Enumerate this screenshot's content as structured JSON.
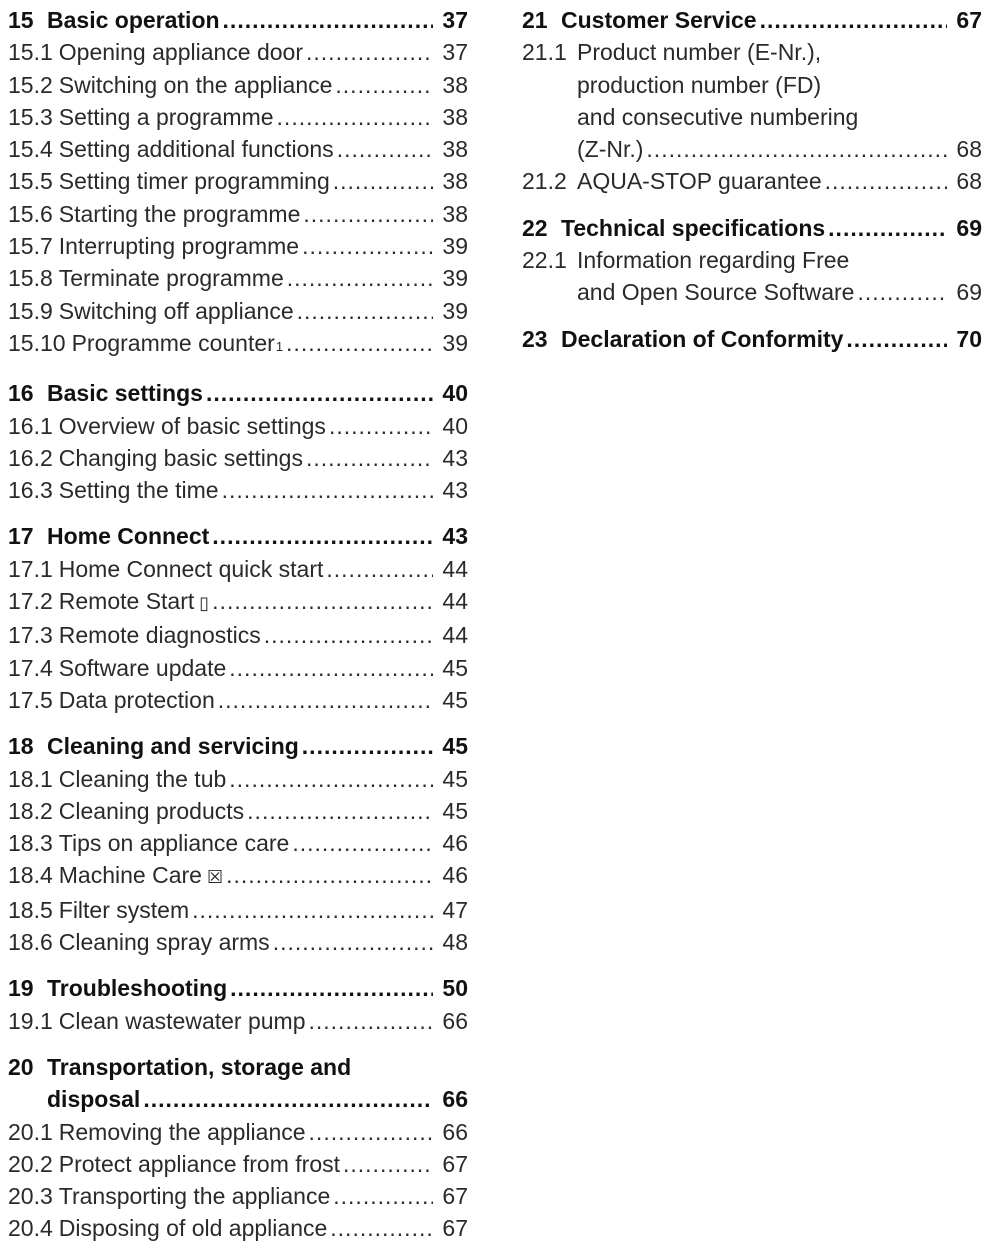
{
  "left": [
    {
      "num": "15",
      "title": "Basic operation",
      "page": "37",
      "items": [
        {
          "num": "15.1",
          "title": "Opening appliance door",
          "page": "37"
        },
        {
          "num": "15.2",
          "title": "Switching on the appliance",
          "page": "38"
        },
        {
          "num": "15.3",
          "title": "Setting a programme",
          "page": "38"
        },
        {
          "num": "15.4",
          "title": "Setting additional functions",
          "page": "38"
        },
        {
          "num": "15.5",
          "title": "Setting timer programming",
          "page": "38"
        },
        {
          "num": "15.6",
          "title": "Starting the programme",
          "page": "38"
        },
        {
          "num": "15.7",
          "title": "Interrupting programme",
          "page": "39"
        },
        {
          "num": "15.8",
          "title": "Terminate programme",
          "page": "39"
        },
        {
          "num": "15.9",
          "title": "Switching off appliance",
          "page": "39"
        },
        {
          "num": "15.10",
          "title": "Programme counter",
          "sup": "1",
          "page": "39"
        }
      ]
    },
    {
      "num": "16",
      "title": "Basic settings",
      "page": "40",
      "items": [
        {
          "num": "16.1",
          "title": "Overview of basic settings",
          "page": "40"
        },
        {
          "num": "16.2",
          "title": "Changing basic settings",
          "page": "43"
        },
        {
          "num": "16.3",
          "title": "Setting the time",
          "page": "43"
        }
      ]
    },
    {
      "num": "17",
      "title": "Home Connect",
      "page": "43",
      "items": [
        {
          "num": "17.1",
          "title": "Home Connect quick start",
          "page": "44"
        },
        {
          "num": "17.2",
          "title": "Remote Start",
          "icon": "remote-start-icon",
          "page": "44"
        },
        {
          "num": "17.3",
          "title": "Remote diagnostics",
          "page": "44"
        },
        {
          "num": "17.4",
          "title": "Software update",
          "page": "45"
        },
        {
          "num": "17.5",
          "title": "Data protection",
          "page": "45"
        }
      ]
    },
    {
      "num": "18",
      "title": "Cleaning and servicing",
      "page": "45",
      "items": [
        {
          "num": "18.1",
          "title": "Cleaning the tub",
          "page": "45"
        },
        {
          "num": "18.2",
          "title": "Cleaning products",
          "page": "45"
        },
        {
          "num": "18.3",
          "title": "Tips on appliance care",
          "page": "46"
        },
        {
          "num": "18.4",
          "title": "Machine Care",
          "icon": "machine-care-icon",
          "page": "46"
        },
        {
          "num": "18.5",
          "title": "Filter system",
          "page": "47"
        },
        {
          "num": "18.6",
          "title": "Cleaning spray arms",
          "page": "48"
        }
      ]
    },
    {
      "num": "19",
      "title": "Troubleshooting",
      "page": "50",
      "items": [
        {
          "num": "19.1",
          "title": "Clean wastewater pump",
          "page": "66"
        }
      ]
    },
    {
      "num": "20",
      "title_line1": "Transportation, storage and",
      "title_line2": "disposal",
      "page": "66",
      "items": [
        {
          "num": "20.1",
          "title": "Removing the appliance",
          "page": "66"
        },
        {
          "num": "20.2",
          "title": "Protect appliance from frost",
          "page": "67"
        },
        {
          "num": "20.3",
          "title": "Transporting the appliance",
          "page": "67"
        },
        {
          "num": "20.4",
          "title": "Disposing of old appliance",
          "page": "67"
        }
      ]
    }
  ],
  "right": {
    "s21": {
      "num": "21",
      "title": "Customer Service",
      "page": "67",
      "item1": {
        "num": "21.1",
        "line1": "Product number (E-Nr.),",
        "line2": "production number (FD)",
        "line3": "and consecutive numbering",
        "line4": "(Z-Nr.)",
        "page": "68"
      },
      "item2": {
        "num": "21.2",
        "title": "AQUA-STOP guarantee",
        "page": "68"
      }
    },
    "s22": {
      "num": "22",
      "title": "Technical specifications",
      "page": "69",
      "item1": {
        "num": "22.1",
        "line1": "Information regarding Free",
        "line2": "and Open Source Software",
        "page": "69"
      }
    },
    "s23": {
      "num": "23",
      "title": "Declaration of Conformity",
      "page": "70"
    }
  },
  "icons": {
    "remote-start-icon": "▯",
    "machine-care-icon": "☒"
  }
}
